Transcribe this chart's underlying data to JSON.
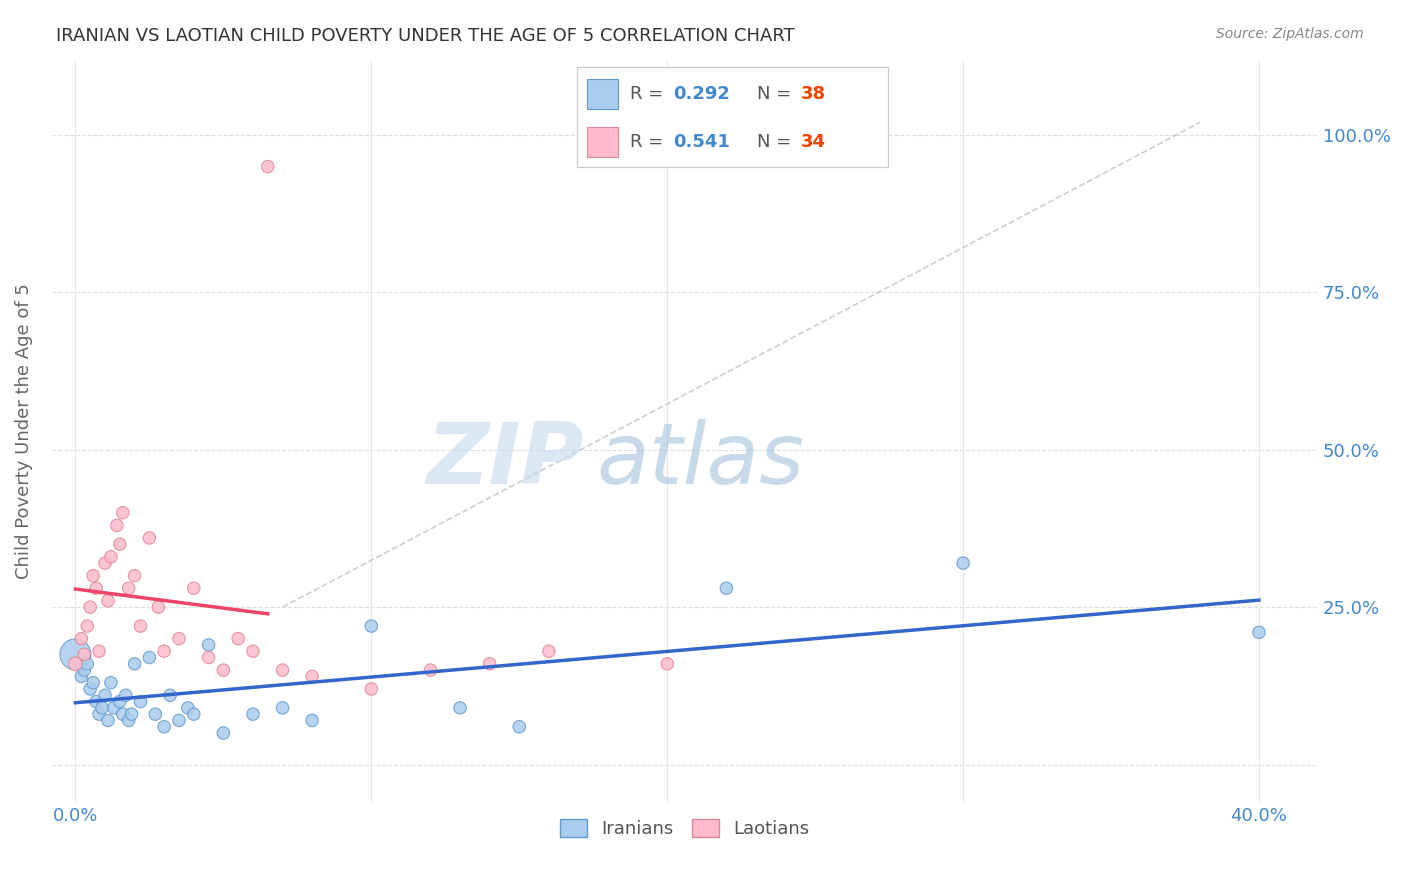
{
  "title": "IRANIAN VS LAOTIAN CHILD POVERTY UNDER THE AGE OF 5 CORRELATION CHART",
  "source": "Source: ZipAtlas.com",
  "xlabel_tick_vals": [
    0.0,
    0.1,
    0.2,
    0.3,
    0.4
  ],
  "xlabel_tick_labels": [
    "0.0%",
    "",
    "",
    "",
    "40.0%"
  ],
  "ylabel_tick_vals": [
    0.0,
    0.25,
    0.5,
    0.75,
    1.0
  ],
  "ylabel_tick_labels": [
    "",
    "25.0%",
    "50.0%",
    "75.0%",
    "100.0%"
  ],
  "ylabel": "Child Poverty Under the Age of 5",
  "xlim": [
    -0.008,
    0.42
  ],
  "ylim": [
    -0.06,
    1.12
  ],
  "watermark_zip": "ZIP",
  "watermark_atlas": "atlas",
  "iranians_x": [
    0.0,
    0.002,
    0.003,
    0.004,
    0.005,
    0.006,
    0.007,
    0.008,
    0.009,
    0.01,
    0.011,
    0.012,
    0.013,
    0.015,
    0.016,
    0.017,
    0.018,
    0.019,
    0.02,
    0.022,
    0.025,
    0.027,
    0.03,
    0.032,
    0.035,
    0.038,
    0.04,
    0.045,
    0.05,
    0.06,
    0.07,
    0.08,
    0.1,
    0.13,
    0.15,
    0.22,
    0.3,
    0.4
  ],
  "iranians_y": [
    0.175,
    0.14,
    0.15,
    0.16,
    0.12,
    0.13,
    0.1,
    0.08,
    0.09,
    0.11,
    0.07,
    0.13,
    0.09,
    0.1,
    0.08,
    0.11,
    0.07,
    0.08,
    0.16,
    0.1,
    0.17,
    0.08,
    0.06,
    0.11,
    0.07,
    0.09,
    0.08,
    0.19,
    0.05,
    0.08,
    0.09,
    0.07,
    0.22,
    0.09,
    0.06,
    0.28,
    0.32,
    0.21
  ],
  "iranians_sizes": [
    500,
    80,
    80,
    80,
    80,
    80,
    80,
    80,
    80,
    80,
    80,
    80,
    80,
    80,
    80,
    80,
    80,
    80,
    80,
    80,
    80,
    80,
    80,
    80,
    80,
    80,
    80,
    80,
    80,
    80,
    80,
    80,
    80,
    80,
    80,
    80,
    80,
    80
  ],
  "iranians_color": "#aaccee",
  "iranians_edge": "#6699cc",
  "laotians_x": [
    0.0,
    0.002,
    0.003,
    0.004,
    0.005,
    0.006,
    0.007,
    0.008,
    0.01,
    0.011,
    0.012,
    0.014,
    0.015,
    0.016,
    0.018,
    0.02,
    0.022,
    0.025,
    0.028,
    0.03,
    0.035,
    0.04,
    0.045,
    0.05,
    0.055,
    0.06,
    0.07,
    0.08,
    0.1,
    0.12,
    0.14,
    0.16,
    0.2,
    0.065
  ],
  "laotians_y": [
    0.16,
    0.2,
    0.175,
    0.22,
    0.25,
    0.3,
    0.28,
    0.18,
    0.32,
    0.26,
    0.33,
    0.38,
    0.35,
    0.4,
    0.28,
    0.3,
    0.22,
    0.36,
    0.25,
    0.18,
    0.2,
    0.28,
    0.17,
    0.15,
    0.2,
    0.18,
    0.15,
    0.14,
    0.12,
    0.15,
    0.16,
    0.18,
    0.16,
    0.95
  ],
  "laotians_sizes": [
    100,
    80,
    80,
    80,
    80,
    80,
    80,
    80,
    80,
    80,
    80,
    80,
    80,
    80,
    80,
    80,
    80,
    80,
    80,
    80,
    80,
    80,
    80,
    80,
    80,
    80,
    80,
    80,
    80,
    80,
    80,
    80,
    80,
    80
  ],
  "laotians_color": "#ffbbcc",
  "laotians_edge": "#dd8899",
  "iranian_line_color": "#3366cc",
  "laotian_line_color": "#ee4466",
  "diag_line_color": "#bbbbbb",
  "background_color": "#ffffff",
  "grid_color": "#dddddd",
  "title_color": "#333333",
  "axis_label_color": "#666666",
  "tick_color_blue": "#4488cc",
  "source_color": "#888888",
  "legend_ir_patch": "#aaccee",
  "legend_ir_edge": "#6699cc",
  "legend_la_patch": "#ffbbcc",
  "legend_la_edge": "#dd8899",
  "legend_r_ir": "0.292",
  "legend_n_ir": "38",
  "legend_r_la": "0.541",
  "legend_n_la": "34",
  "legend_text_color": "#555555",
  "legend_r_color": "#4488cc",
  "legend_n_color": "#ee4400"
}
